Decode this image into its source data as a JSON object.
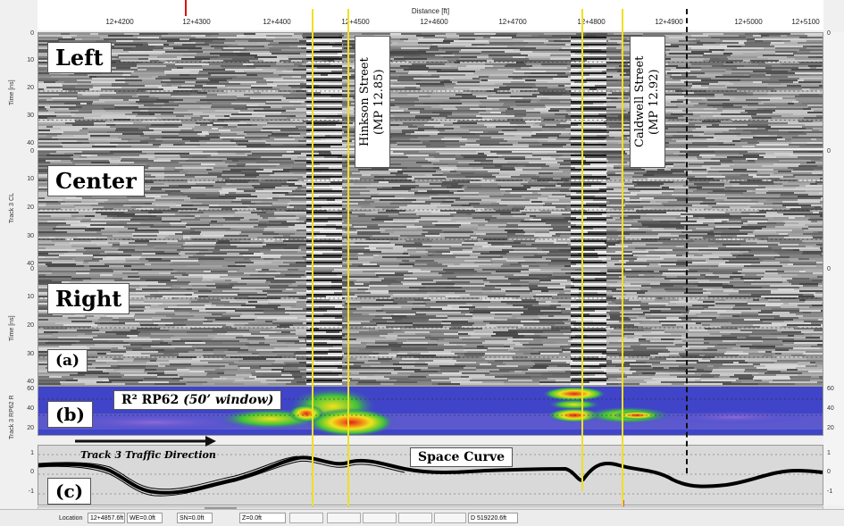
{
  "axis": {
    "title": "Distance [ft]",
    "ticks": [
      "12+4200",
      "12+4300",
      "12+4400",
      "12+4500",
      "12+4600",
      "12+4700",
      "12+4800",
      "12+4900",
      "12+5000",
      "12+5100"
    ]
  },
  "panels": {
    "left": {
      "label": "Left",
      "track_label": "Time [ns]",
      "yticks": [
        "0",
        "10",
        "20",
        "30",
        "40"
      ]
    },
    "center": {
      "label": "Center",
      "track_label": "Track 3 CL",
      "yticks": [
        "0",
        "10",
        "20",
        "30",
        "40"
      ]
    },
    "right": {
      "label": "Right",
      "track_label": "Time [ns]",
      "yticks": [
        "0",
        "10",
        "20",
        "30",
        "40"
      ]
    },
    "b": {
      "label": "(b)",
      "title": "R² RP62",
      "title_note": "(50’ window)",
      "track_label": "Track 3 RP62 R",
      "yticks": [
        "60",
        "40",
        "20"
      ]
    },
    "c": {
      "label": "(c)",
      "title": "Space Curve",
      "direction_label": "Track 3 Traffic Direction",
      "yticks": [
        "1",
        "0",
        "-1"
      ]
    }
  },
  "panel_a_label": "(a)",
  "annotations": {
    "hinkson": [
      "Hinkson Street",
      "(MP 12.85)"
    ],
    "caldwell": [
      "Caldwell Street",
      "(MP 12.92)"
    ]
  },
  "right_yticks": [
    "0",
    "0",
    "0",
    "60",
    "40",
    "20",
    "1",
    "0",
    "-1"
  ],
  "statusbar": {
    "location_label": "Location",
    "location_value": "12+4857.6ft",
    "we": "WE=0.0ft",
    "sn": "SN=0.0ft",
    "z": "Z=0.0ft",
    "d": "D 519220.6ft"
  },
  "colors": {
    "yellow_marker": "#f0e020",
    "magenta_marker": "#d040d0",
    "heatmap_low": "#3f44c8",
    "heatmap_high": "#e8201a"
  }
}
